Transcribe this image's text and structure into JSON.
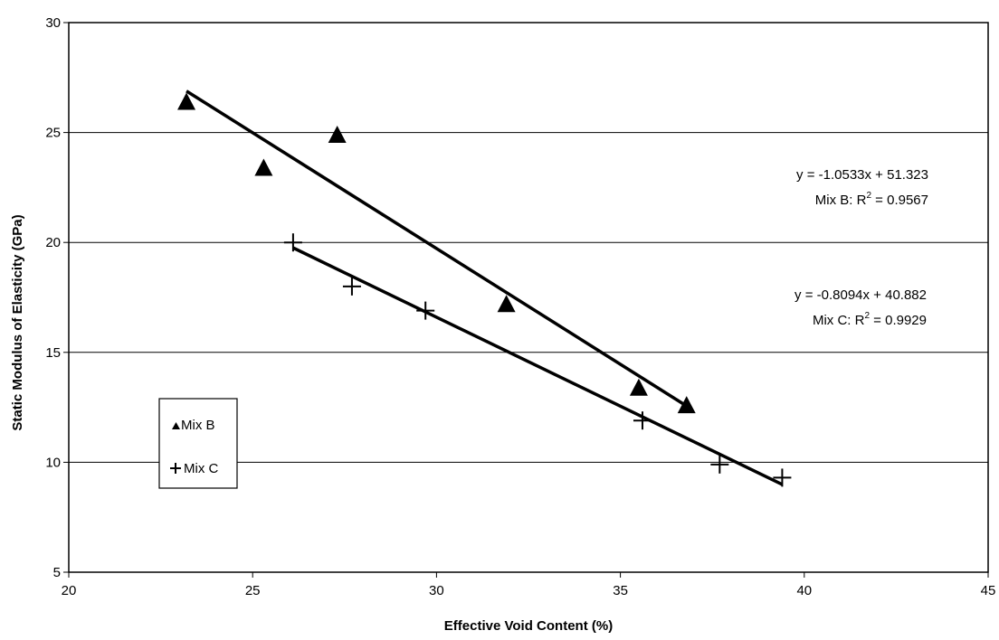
{
  "chart_data": {
    "type": "scatter",
    "xlabel": "Effective Void Content (%)",
    "ylabel": "Static Modulus of Elasticity (GPa)",
    "xlim": [
      20,
      45
    ],
    "ylim": [
      5,
      30
    ],
    "x_ticks": [
      20,
      25,
      30,
      35,
      40,
      45
    ],
    "y_ticks": [
      5,
      10,
      15,
      20,
      25,
      30
    ],
    "grid": "horizontal",
    "legend_position": "lower-left",
    "series": [
      {
        "name": "Mix B",
        "marker": "triangle",
        "points": [
          {
            "x": 23.2,
            "y": 26.4
          },
          {
            "x": 25.3,
            "y": 23.4
          },
          {
            "x": 27.3,
            "y": 24.9
          },
          {
            "x": 31.9,
            "y": 17.2
          },
          {
            "x": 35.5,
            "y": 13.4
          },
          {
            "x": 36.8,
            "y": 12.6
          }
        ],
        "trendline": {
          "slope": -1.0533,
          "intercept": 51.323,
          "x_range": [
            23.2,
            36.8
          ]
        }
      },
      {
        "name": "Mix C",
        "marker": "plus",
        "points": [
          {
            "x": 26.1,
            "y": 20.0
          },
          {
            "x": 27.7,
            "y": 18.0
          },
          {
            "x": 29.7,
            "y": 16.9
          },
          {
            "x": 35.6,
            "y": 11.9
          },
          {
            "x": 37.7,
            "y": 9.9
          },
          {
            "x": 39.4,
            "y": 9.3
          }
        ],
        "trendline": {
          "slope": -0.8094,
          "intercept": 40.882,
          "x_range": [
            26.1,
            39.4
          ]
        }
      }
    ],
    "annotations": {
      "mix_b_equation": "y = -1.0533x + 51.323",
      "mix_b_r2_prefix": "Mix B:  R",
      "mix_b_r2_sup": "2",
      "mix_b_r2_value": " = 0.9567",
      "mix_c_equation": "y = -0.8094x + 40.882",
      "mix_c_r2_prefix": "Mix C:  R",
      "mix_c_r2_sup": "2",
      "mix_c_r2_value": " = 0.9929"
    }
  }
}
